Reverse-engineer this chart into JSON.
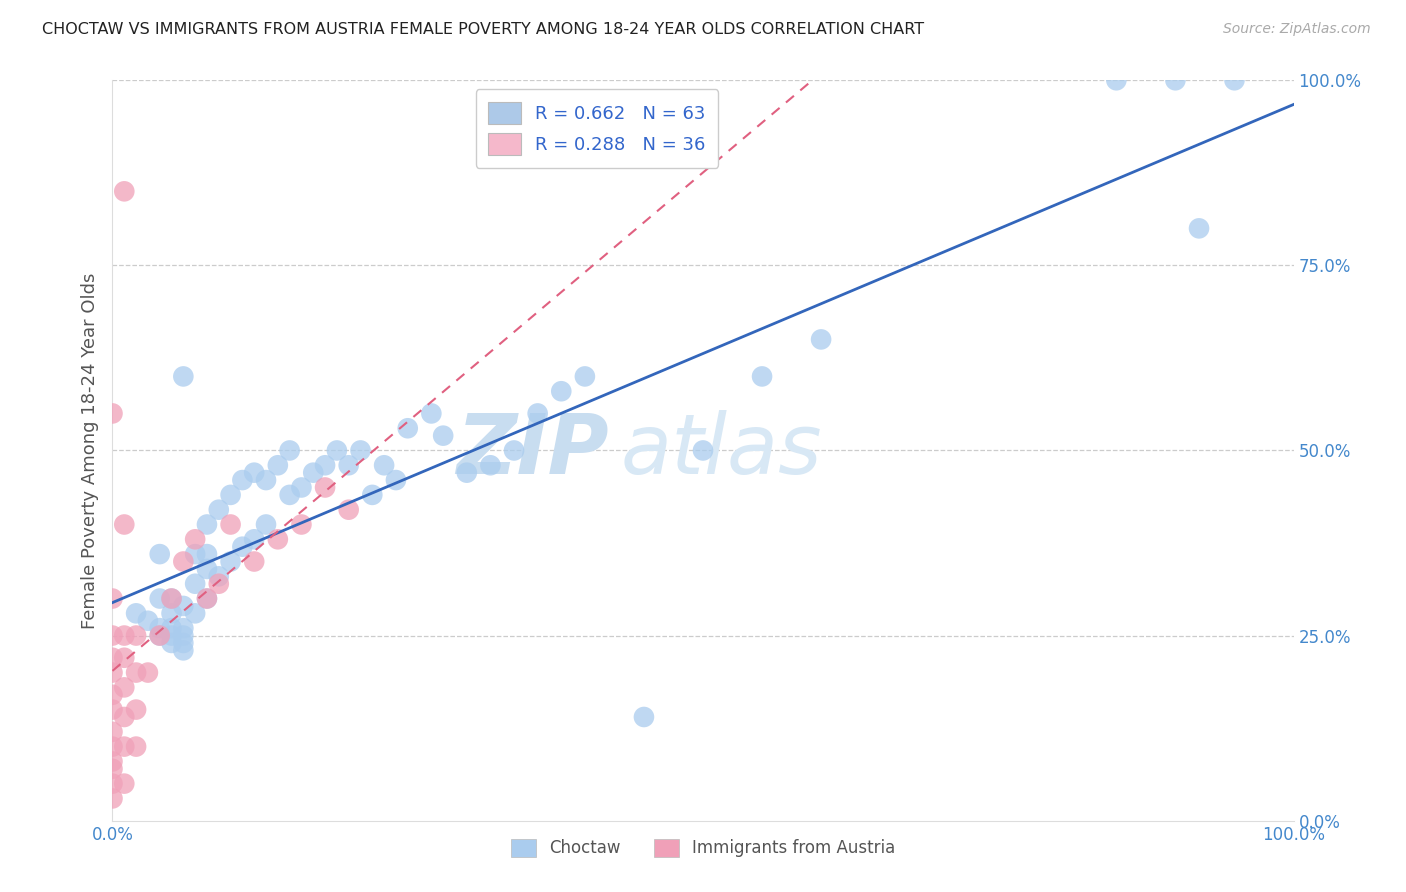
{
  "title": "CHOCTAW VS IMMIGRANTS FROM AUSTRIA FEMALE POVERTY AMONG 18-24 YEAR OLDS CORRELATION CHART",
  "source": "Source: ZipAtlas.com",
  "ylabel": "Female Poverty Among 18-24 Year Olds",
  "xlim": [
    0,
    1
  ],
  "ylim": [
    0,
    1
  ],
  "ytick_values": [
    0.0,
    0.25,
    0.5,
    0.75,
    1.0
  ],
  "ytick_labels": [
    "0.0%",
    "25.0%",
    "50.0%",
    "75.0%",
    "100.0%"
  ],
  "xtick_values": [
    0.0,
    1.0
  ],
  "xtick_labels": [
    "0.0%",
    "100.0%"
  ],
  "watermark_zip": "ZIP",
  "watermark_atlas": "atlas",
  "legend_entries": [
    {
      "label_r": "R = 0.662",
      "label_n": "N = 63",
      "facecolor": "#adc9e8",
      "R": 0.662,
      "N": 63
    },
    {
      "label_r": "R = 0.288",
      "label_n": "N = 36",
      "facecolor": "#f5b8cb",
      "R": 0.288,
      "N": 36
    }
  ],
  "choctaw": {
    "name": "Choctaw",
    "scatter_color": "#aaccee",
    "trend_color": "#3366bb",
    "trend_linestyle": "solid",
    "trend_linewidth": 2.0,
    "x": [
      0.02,
      0.03,
      0.04,
      0.04,
      0.04,
      0.05,
      0.05,
      0.05,
      0.05,
      0.05,
      0.06,
      0.06,
      0.06,
      0.06,
      0.06,
      0.07,
      0.07,
      0.08,
      0.08,
      0.08,
      0.08,
      0.09,
      0.09,
      0.1,
      0.1,
      0.11,
      0.11,
      0.12,
      0.12,
      0.13,
      0.13,
      0.14,
      0.15,
      0.15,
      0.16,
      0.17,
      0.18,
      0.19,
      0.2,
      0.21,
      0.22,
      0.23,
      0.24,
      0.25,
      0.27,
      0.28,
      0.3,
      0.32,
      0.34,
      0.36,
      0.38,
      0.4,
      0.45,
      0.5,
      0.55,
      0.6,
      0.85,
      0.9,
      0.92,
      0.95,
      0.04,
      0.06,
      0.07
    ],
    "y": [
      0.28,
      0.27,
      0.25,
      0.26,
      0.3,
      0.24,
      0.25,
      0.26,
      0.28,
      0.3,
      0.23,
      0.24,
      0.25,
      0.26,
      0.29,
      0.28,
      0.32,
      0.3,
      0.34,
      0.36,
      0.4,
      0.33,
      0.42,
      0.35,
      0.44,
      0.37,
      0.46,
      0.38,
      0.47,
      0.4,
      0.46,
      0.48,
      0.44,
      0.5,
      0.45,
      0.47,
      0.48,
      0.5,
      0.48,
      0.5,
      0.44,
      0.48,
      0.46,
      0.53,
      0.55,
      0.52,
      0.47,
      0.48,
      0.5,
      0.55,
      0.58,
      0.6,
      0.14,
      0.5,
      0.6,
      0.65,
      1.0,
      1.0,
      0.8,
      1.0,
      0.36,
      0.6,
      0.36
    ]
  },
  "austria": {
    "name": "Immigrants from Austria",
    "scatter_color": "#f0a0b8",
    "trend_color": "#e06080",
    "trend_linestyle": "dashed",
    "trend_linewidth": 1.5,
    "x": [
      0.0,
      0.0,
      0.0,
      0.0,
      0.0,
      0.0,
      0.0,
      0.0,
      0.0,
      0.0,
      0.0,
      0.0,
      0.01,
      0.01,
      0.01,
      0.01,
      0.01,
      0.01,
      0.01,
      0.02,
      0.02,
      0.02,
      0.02,
      0.03,
      0.04,
      0.05,
      0.06,
      0.07,
      0.08,
      0.09,
      0.1,
      0.12,
      0.14,
      0.16,
      0.18,
      0.2
    ],
    "y": [
      0.03,
      0.05,
      0.07,
      0.08,
      0.1,
      0.12,
      0.15,
      0.17,
      0.2,
      0.22,
      0.25,
      0.3,
      0.05,
      0.1,
      0.14,
      0.18,
      0.22,
      0.25,
      0.4,
      0.1,
      0.15,
      0.2,
      0.25,
      0.2,
      0.25,
      0.3,
      0.35,
      0.38,
      0.3,
      0.32,
      0.4,
      0.35,
      0.38,
      0.4,
      0.45,
      0.42
    ]
  },
  "austria_isolated": {
    "x": [
      0.0,
      0.01
    ],
    "y": [
      0.55,
      0.85
    ]
  },
  "background_color": "#ffffff",
  "grid_color": "#cccccc",
  "title_color": "#222222",
  "source_color": "#aaaaaa",
  "axis_label_color": "#555555",
  "tick_color": "#4488cc",
  "watermark_color": "#ddeeff"
}
